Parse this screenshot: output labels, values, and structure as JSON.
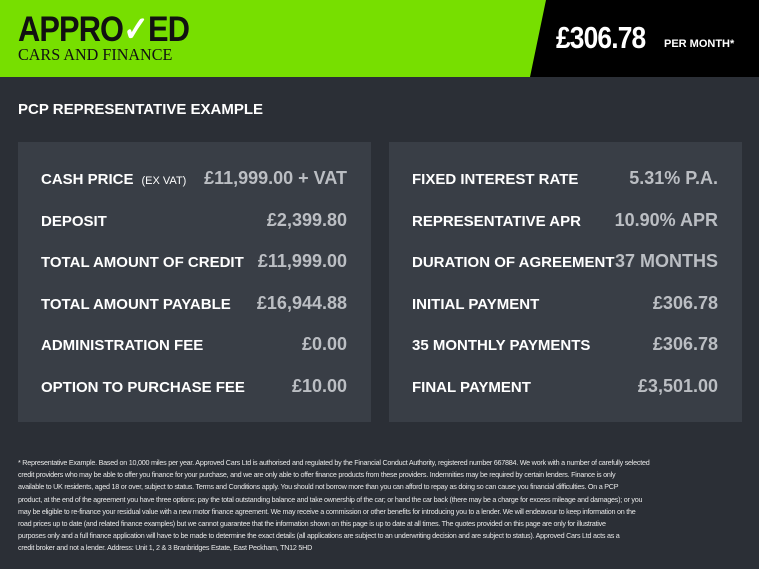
{
  "header": {
    "logo_top_a": "APPRO",
    "logo_top_check": "✓",
    "logo_top_b": "ED",
    "logo_bottom": "CARS AND FINANCE",
    "price": "£306.78",
    "per_month": "PER MONTH*",
    "accent": "#77df00"
  },
  "title": "PCP REPRESENTATIVE EXAMPLE",
  "left": [
    {
      "label": "CASH PRICE",
      "note": "(EX VAT)",
      "value": "£11,999.00 + VAT"
    },
    {
      "label": "DEPOSIT",
      "value": "£2,399.80"
    },
    {
      "label": "TOTAL AMOUNT OF CREDIT",
      "value": "£11,999.00"
    },
    {
      "label": "TOTAL AMOUNT PAYABLE",
      "value": "£16,944.88"
    },
    {
      "label": "ADMINISTRATION FEE",
      "value": "£0.00"
    },
    {
      "label": "OPTION TO PURCHASE FEE",
      "value": "£10.00"
    }
  ],
  "right": [
    {
      "label": "FIXED INTEREST RATE",
      "value": "5.31% P.A."
    },
    {
      "label": "REPRESENTATIVE APR",
      "value": "10.90% APR"
    },
    {
      "label": "DURATION OF AGREEMENT",
      "value": "37 MONTHS"
    },
    {
      "label": "INITIAL PAYMENT",
      "value": "£306.78"
    },
    {
      "label": "35 MONTHLY PAYMENTS",
      "value": "£306.78"
    },
    {
      "label": "FINAL PAYMENT",
      "value": "£3,501.00"
    }
  ],
  "footer": [
    "* Representative Example. Based on 10,000 miles per year. Approved Cars Ltd is authorised and regulated by the Financial Conduct Authority, registered number 667884. We work with a number of carefully selected",
    "credit providers who may be able to offer you finance for your purchase, and we are only able to offer finance products from these providers. Indemnities may be required by certain lenders. Finance is only",
    "available to UK residents, aged 18 or over, subject to status. Terms and Conditions apply. You should not borrow more than you can afford to repay as doing so can cause you financial difficulties. On a PCP",
    "product, at the end of the agreement you have three options: pay the total outstanding balance and take ownership of the car; or hand the car back (there may be a charge for excess mileage and damages); or you",
    "may be eligible to re-finance your residual value with a new motor finance agreement. We may receive a commission or other benefits for introducing you to a lender. We will endeavour to keep information on the",
    "road prices up to date (and related finance examples) but we cannot guarantee that the information shown on this page is up to date at all times. The quotes provided on this page are only for illustrative",
    "purposes only and a full finance application will have to be made to determine the exact details (all applications are subject to an underwriting decision and are subject to status). Approved Cars Ltd acts as a",
    "credit broker and not a lender. Address: Unit 1, 2 & 3 Branbridges Estate, East Peckham, TN12 5HD"
  ]
}
